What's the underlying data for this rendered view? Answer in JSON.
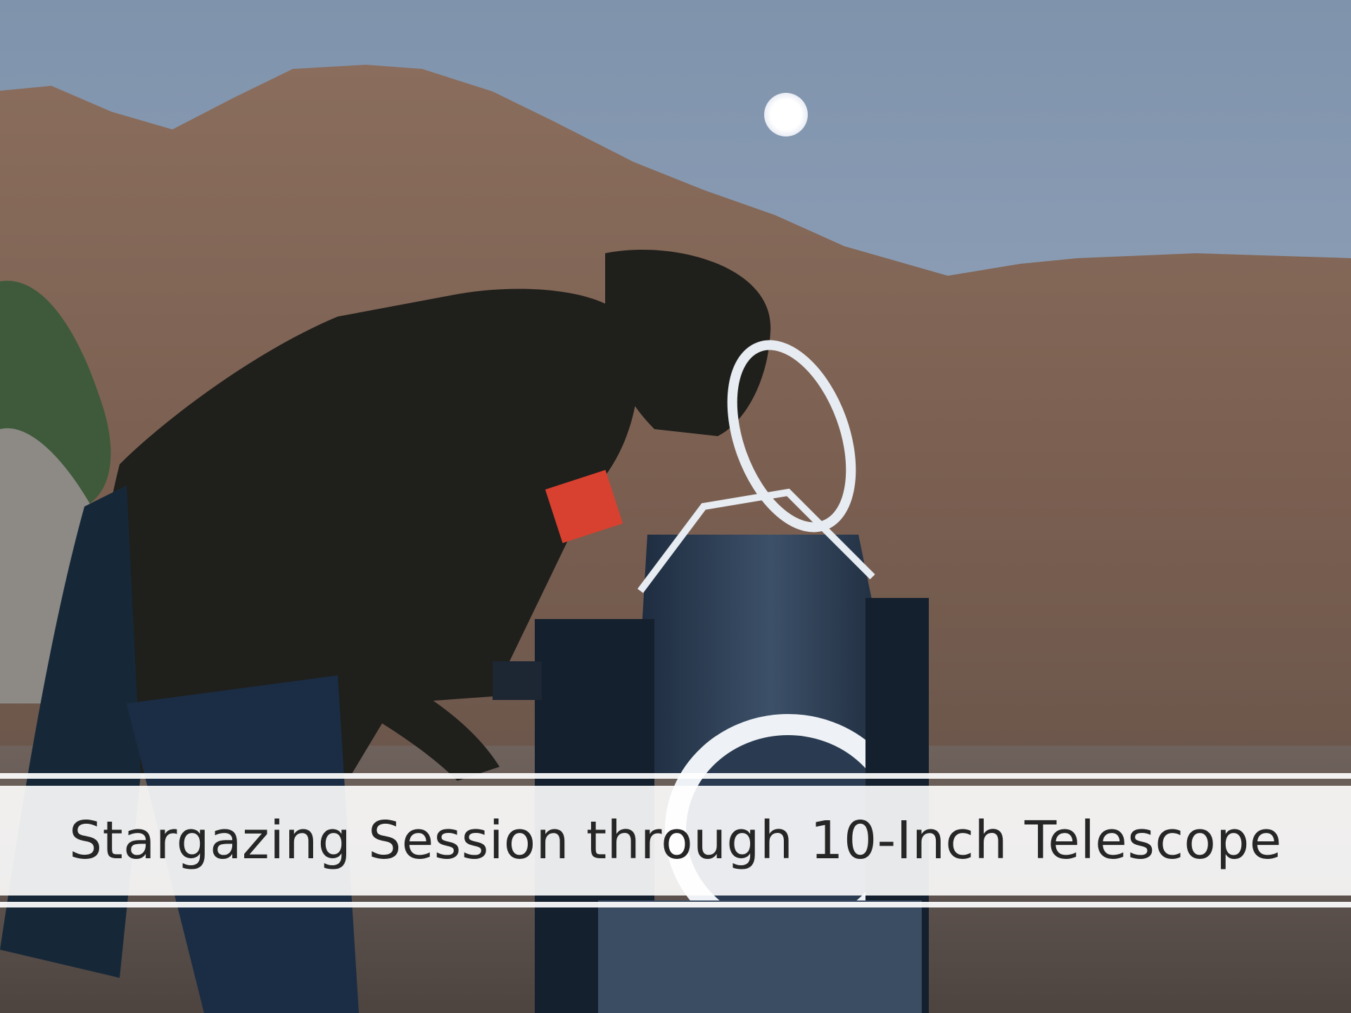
{
  "caption": {
    "title": "Stargazing Session through 10-Inch Telescope"
  }
}
